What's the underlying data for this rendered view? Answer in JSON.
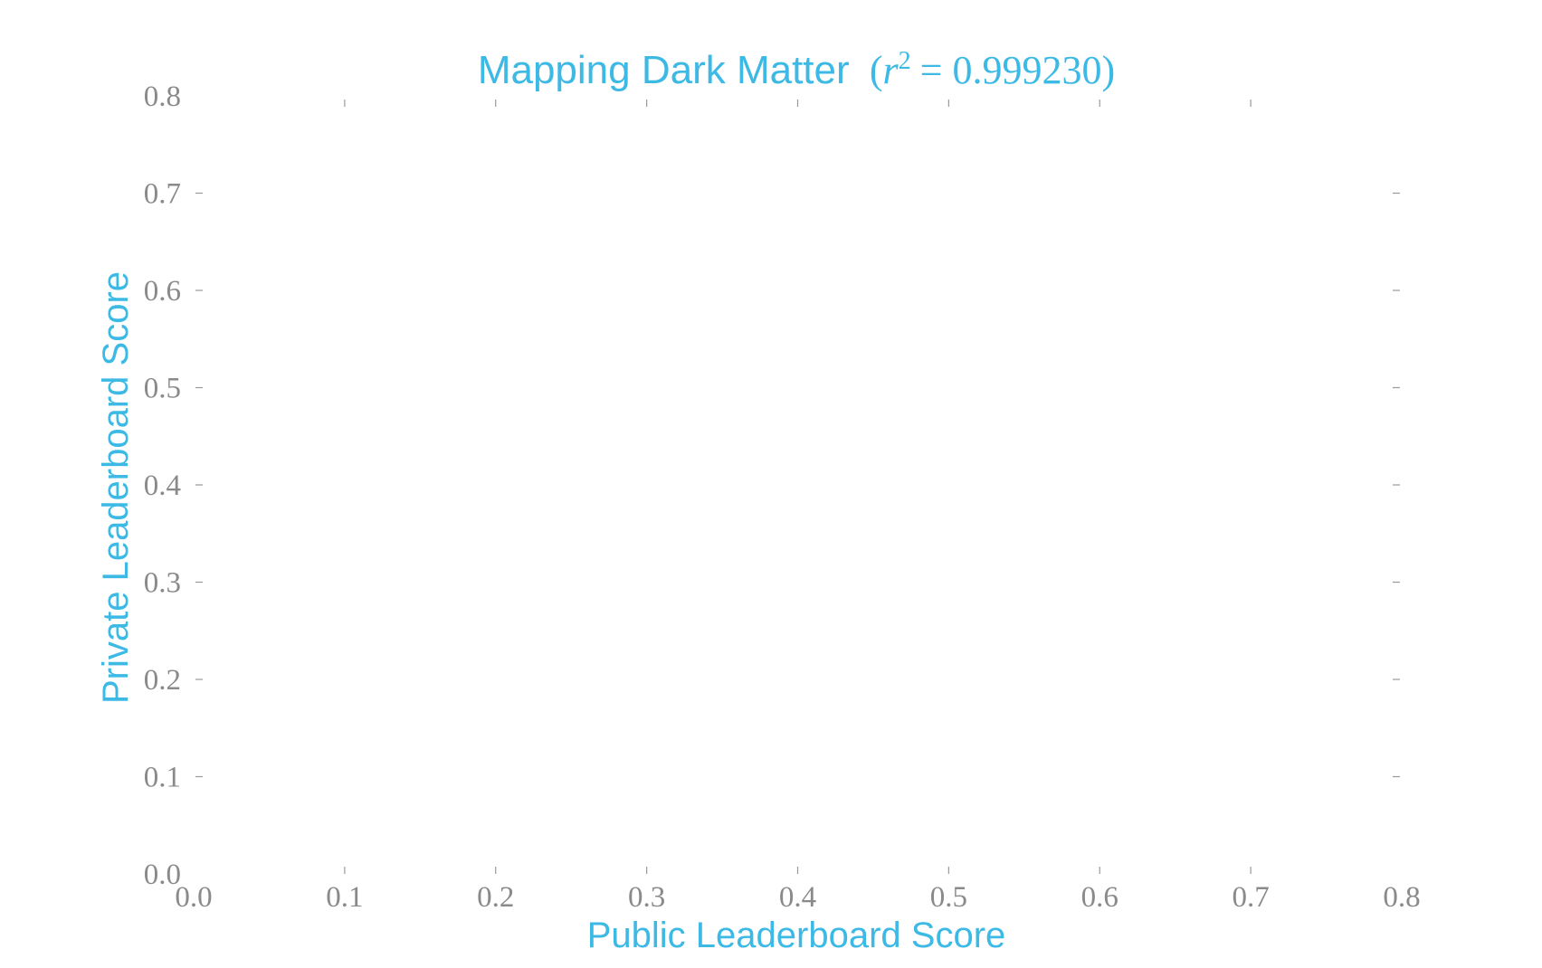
{
  "chart_data": {
    "type": "scatter",
    "title_text": "Mapping Dark Matter",
    "title_metric": "r",
    "title_exponent": "2",
    "title_value": "= 0.999230",
    "title_open": "(",
    "title_close": ")",
    "xlabel": "Public Leaderboard Score",
    "ylabel": "Private Leaderboard Score",
    "xlim": [
      0.0,
      0.8
    ],
    "ylim": [
      0.0,
      0.8
    ],
    "xticks": [
      "0.0",
      "0.1",
      "0.2",
      "0.3",
      "0.4",
      "0.5",
      "0.6",
      "0.7",
      "0.8"
    ],
    "yticks": [
      "0.0",
      "0.1",
      "0.2",
      "0.3",
      "0.4",
      "0.5",
      "0.6",
      "0.7",
      "0.8"
    ],
    "series": [],
    "grid": false,
    "colors": {
      "accent": "#3cb9e4",
      "tick": "#8a8a8a",
      "tick_mark": "#9a9a9a"
    }
  }
}
